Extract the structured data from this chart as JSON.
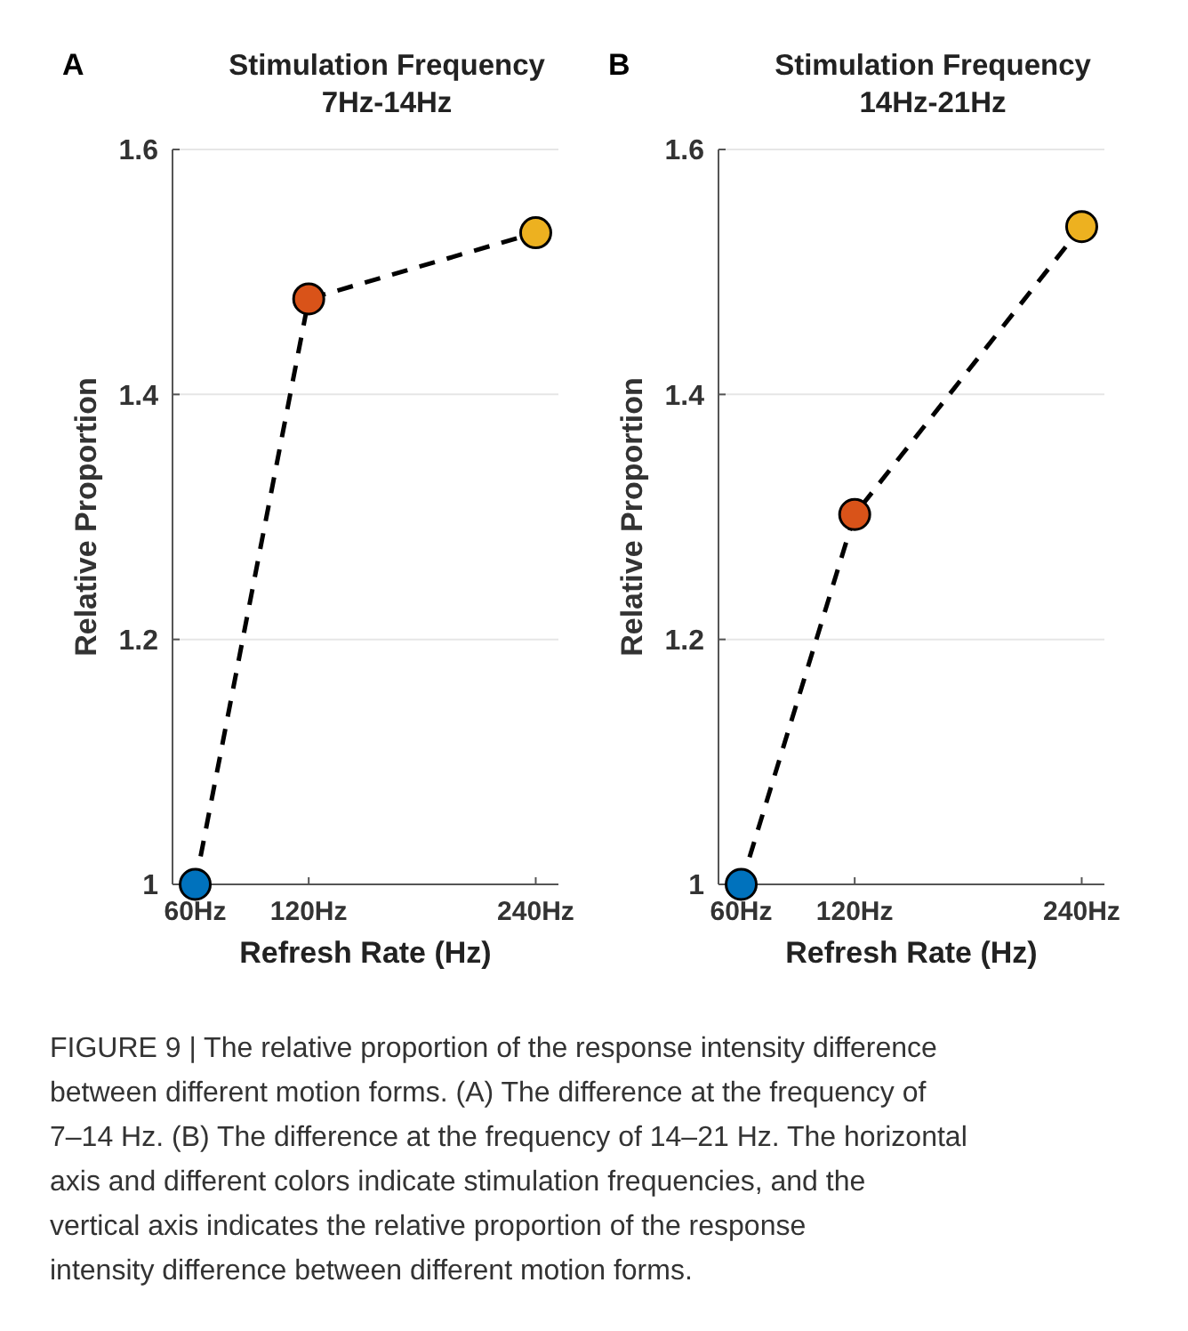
{
  "chart_data": [
    {
      "type": "line",
      "title": "Stimulation Frequency\n7Hz-14Hz",
      "xlabel": "Refresh Rate (Hz)",
      "ylabel": "Relative Proportion",
      "annotations": [
        "A",
        "FIGURE 9 | The relative proportion of the response intensity difference between different motion forms. (A) The difference at the frequency of 7–14 Hz. (B) The difference at the frequency of 14–21 Hz. The horizontal axis and different colors indicate stimulation frequencies, and the vertical axis indicates the relative proportion of the response intensity difference between different motion forms."
      ],
      "x": [
        60,
        120,
        240
      ],
      "series": [
        {
          "color": "#000000",
          "colors": [
            "#0072bd",
            "#d95319",
            "#edb120"
          ],
          "values": [
            1.0,
            1.478,
            1.532
          ]
        }
      ],
      "xlim": [
        48,
        252
      ],
      "xticks": [
        {
          "value": 60,
          "label": "60Hz"
        },
        {
          "value": 120,
          "label": "120Hz"
        },
        {
          "value": 240,
          "label": "240Hz"
        }
      ],
      "ylim": [
        1,
        1.6
      ],
      "yticks": [
        1,
        1.2,
        1.4,
        1.6
      ],
      "grid": "y",
      "marker": "circle",
      "line_style": "dashed"
    },
    {
      "type": "line",
      "title": "Stimulation Frequency\n14Hz-21Hz",
      "xlabel": "Refresh Rate (Hz)",
      "ylabel": "Relative Proportion",
      "annotations": [
        "B"
      ],
      "x": [
        60,
        120,
        240
      ],
      "series": [
        {
          "color": "#000000",
          "colors": [
            "#0072bd",
            "#d95319",
            "#edb120"
          ],
          "values": [
            1.0,
            1.302,
            1.537
          ]
        }
      ],
      "xlim": [
        48,
        252
      ],
      "xticks": [
        {
          "value": 60,
          "label": "60Hz"
        },
        {
          "value": 120,
          "label": "120Hz"
        },
        {
          "value": 240,
          "label": "240Hz"
        }
      ],
      "ylim": [
        1,
        1.6
      ],
      "yticks": [
        1,
        1.2,
        1.4,
        1.6
      ],
      "grid": "y",
      "marker": "circle",
      "line_style": "dashed"
    }
  ]
}
